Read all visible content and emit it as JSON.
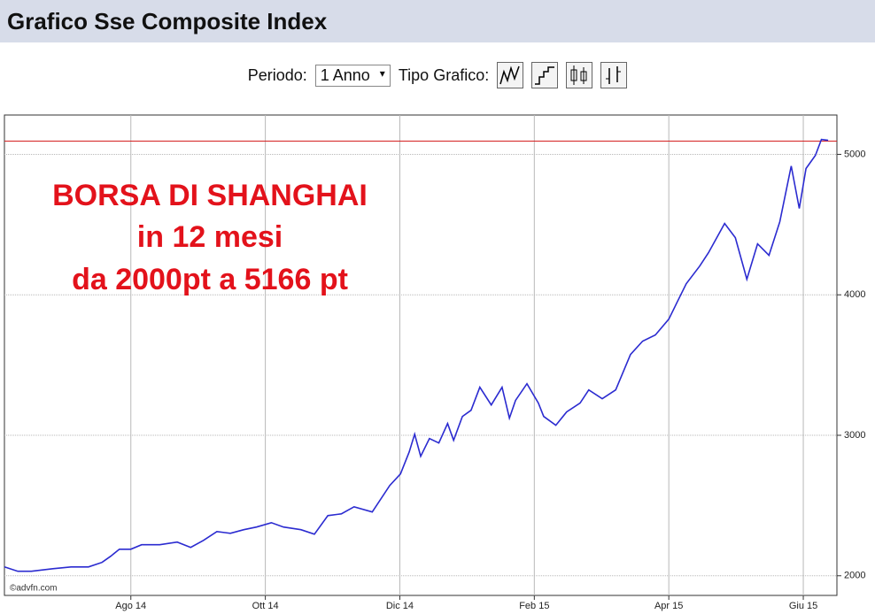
{
  "header": {
    "title": "Grafico Sse Composite Index"
  },
  "controls": {
    "period_label": "Periodo:",
    "period_value": "1 Anno",
    "type_label": "Tipo Grafico:"
  },
  "chart_data": {
    "type": "line",
    "annotations": [
      "BORSA DI SHANGHAI",
      "in 12 mesi",
      "da 2000pt a 5166 pt"
    ],
    "watermark": "©advfn.com",
    "color": "#2b2bd0",
    "reference_line": 5094,
    "reference_color": "#d42020",
    "grid": true,
    "xlim": [
      6.12,
      18.5
    ],
    "ylim": [
      1860,
      5280
    ],
    "xticks": [
      {
        "value": 8,
        "label": "Ago 14"
      },
      {
        "value": 10,
        "label": "Ott 14"
      },
      {
        "value": 12,
        "label": "Dic 14"
      },
      {
        "value": 14,
        "label": "Feb 15"
      },
      {
        "value": 16,
        "label": "Apr 15"
      },
      {
        "value": 18,
        "label": "Giu 15"
      }
    ],
    "yticks": [
      2000,
      3000,
      4000,
      5000
    ],
    "x": [
      6.12,
      6.32,
      6.52,
      6.84,
      7.11,
      7.37,
      7.57,
      7.7,
      7.83,
      8.0,
      8.16,
      8.43,
      8.69,
      8.89,
      9.08,
      9.28,
      9.48,
      9.68,
      9.87,
      10.09,
      10.27,
      10.53,
      10.73,
      10.93,
      11.13,
      11.32,
      11.59,
      11.85,
      12.01,
      12.14,
      12.22,
      12.31,
      12.44,
      12.58,
      12.71,
      12.8,
      12.93,
      13.06,
      13.19,
      13.36,
      13.52,
      13.63,
      13.72,
      13.89,
      14.06,
      14.14,
      14.32,
      14.48,
      14.68,
      14.81,
      15.01,
      15.21,
      15.43,
      15.61,
      15.8,
      16.0,
      16.13,
      16.26,
      16.46,
      16.59,
      16.83,
      16.99,
      17.16,
      17.32,
      17.49,
      17.65,
      17.82,
      17.94,
      18.04,
      18.18,
      18.27,
      18.37
    ],
    "values": [
      2063,
      2032,
      2032,
      2050,
      2063,
      2063,
      2095,
      2139,
      2189,
      2189,
      2221,
      2221,
      2240,
      2202,
      2252,
      2315,
      2302,
      2328,
      2347,
      2378,
      2347,
      2328,
      2296,
      2428,
      2441,
      2491,
      2454,
      2643,
      2725,
      2882,
      3008,
      2851,
      2977,
      2945,
      3084,
      2964,
      3134,
      3178,
      3342,
      3216,
      3342,
      3122,
      3248,
      3367,
      3229,
      3134,
      3071,
      3166,
      3229,
      3323,
      3260,
      3323,
      3575,
      3670,
      3714,
      3827,
      3953,
      4079,
      4205,
      4300,
      4508,
      4407,
      4111,
      4363,
      4281,
      4520,
      4917,
      4615,
      4899,
      4993,
      5106,
      5100
    ]
  }
}
